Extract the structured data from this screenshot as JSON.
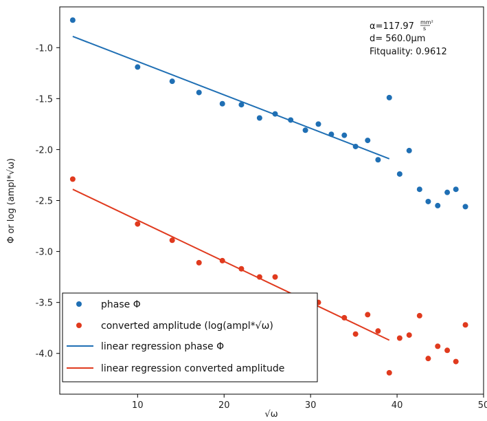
{
  "chart_data": {
    "type": "scatter",
    "xlabel": "√ω",
    "ylabel": "Φ or log (ampl*√ω)",
    "xlim": [
      1,
      50
    ],
    "ylim": [
      -4.4,
      -0.6
    ],
    "x_ticks": [
      10,
      20,
      30,
      40,
      50
    ],
    "x_tick_labels": [
      "10",
      "20",
      "30",
      "40",
      "50"
    ],
    "y_ticks": [
      -1.0,
      -1.5,
      -2.0,
      -2.5,
      -3.0,
      -3.5,
      -4.0
    ],
    "y_tick_labels": [
      "-1.0",
      "-1.5",
      "-2.0",
      "-2.5",
      "-3.0",
      "-3.5",
      "-4.0"
    ],
    "grid": false,
    "legend_position": "bottom-left",
    "annotations": {
      "alpha_prefix": "α=117.97",
      "alpha_unit_num": "mm²",
      "alpha_unit_den": "s",
      "d": "d= 560.0µm",
      "fitquality": "Fitquality: 0.9612"
    },
    "series": [
      {
        "name": "phase Φ",
        "kind": "scatter",
        "color": "#1f6fb4",
        "x": [
          2.5,
          10.0,
          14.0,
          17.1,
          19.8,
          22.0,
          24.1,
          25.9,
          27.7,
          29.4,
          30.9,
          32.4,
          33.9,
          35.2,
          36.6,
          37.8,
          39.1,
          40.3,
          41.4,
          42.6,
          43.6,
          44.7,
          45.8,
          46.8,
          47.9
        ],
        "y": [
          -0.73,
          -1.19,
          -1.33,
          -1.44,
          -1.55,
          -1.56,
          -1.69,
          -1.65,
          -1.71,
          -1.81,
          -1.75,
          -1.85,
          -1.86,
          -1.97,
          -1.91,
          -2.1,
          -1.49,
          -2.24,
          -2.01,
          -2.39,
          -2.51,
          -2.55,
          -2.42,
          -2.39,
          -2.56
        ]
      },
      {
        "name": "converted amplitude (log(ampl*√ω)",
        "kind": "scatter",
        "color": "#e03a1e",
        "x": [
          2.5,
          10.0,
          14.0,
          17.1,
          19.8,
          22.0,
          24.1,
          25.9,
          27.7,
          29.4,
          30.9,
          33.9,
          35.2,
          36.6,
          37.8,
          39.1,
          40.3,
          41.4,
          42.6,
          43.6,
          44.7,
          45.8,
          46.8,
          47.9
        ],
        "y": [
          -2.29,
          -2.73,
          -2.89,
          -3.11,
          -3.09,
          -3.17,
          -3.25,
          -3.25,
          -3.5,
          -3.47,
          -3.5,
          -3.65,
          -3.81,
          -3.62,
          -3.78,
          -4.19,
          -3.85,
          -3.82,
          -3.63,
          -4.05,
          -3.93,
          -3.97,
          -4.08,
          -3.72
        ]
      },
      {
        "name": "linear regression phase Φ",
        "kind": "line",
        "color": "#1f6fb4",
        "x": [
          2.5,
          39.1
        ],
        "y": [
          -0.89,
          -2.09
        ]
      },
      {
        "name": "linear regression converted amplitude",
        "kind": "line",
        "color": "#e03a1e",
        "x": [
          2.5,
          39.1
        ],
        "y": [
          -2.39,
          -3.87
        ]
      }
    ]
  }
}
